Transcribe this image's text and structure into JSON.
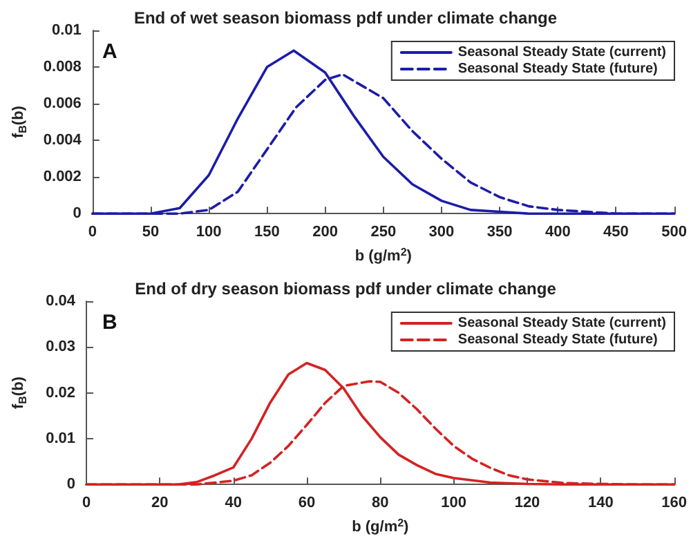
{
  "chart_data": [
    {
      "type": "line",
      "title": "End of wet season biomass pdf under climate change",
      "xlabel": "b (g/m$^{2}$)",
      "ylabel": "f$_{B}$(b)",
      "annotations": [
        "A"
      ],
      "xlim": [
        0,
        500
      ],
      "xticks": [
        0,
        50,
        100,
        150,
        200,
        250,
        300,
        350,
        400,
        450,
        500
      ],
      "ylim": [
        0,
        0.01
      ],
      "yticks": [
        0,
        0.002,
        0.004,
        0.006,
        0.008,
        0.01
      ],
      "grid": false,
      "legend": "top right",
      "marker": "none",
      "series": [
        {
          "name": "Seasonal Steady State (current)",
          "color": "#1c1ca8",
          "line_style": "solid",
          "x": [
            0,
            25,
            50,
            75,
            100,
            125,
            150,
            173,
            200,
            225,
            250,
            275,
            300,
            325,
            350,
            375,
            400,
            450,
            500
          ],
          "values": [
            0,
            0,
            0,
            0.0003,
            0.0021,
            0.0052,
            0.008,
            0.0089,
            0.0077,
            0.0053,
            0.0031,
            0.0016,
            0.0007,
            0.0002,
            0.0001,
            0,
            0,
            0,
            0
          ]
        },
        {
          "name": "Seasonal Steady State (future)",
          "color": "#1c1ca8",
          "line_style": "dashed",
          "x": [
            0,
            50,
            75,
            100,
            125,
            150,
            175,
            200,
            215,
            250,
            275,
            300,
            325,
            350,
            375,
            400,
            425,
            450,
            500
          ],
          "values": [
            0,
            0,
            0,
            0.0002,
            0.0012,
            0.0035,
            0.0058,
            0.0073,
            0.0076,
            0.0063,
            0.0045,
            0.003,
            0.0017,
            0.0009,
            0.0004,
            0.0002,
            0.0001,
            0,
            0
          ]
        }
      ]
    },
    {
      "type": "line",
      "title": "End of dry season biomass pdf under climate change",
      "xlabel": "b (g/m$^{2}$)",
      "ylabel": "f$_{B}$(b)",
      "annotations": [
        "B"
      ],
      "xlim": [
        0,
        160
      ],
      "xticks": [
        0,
        20,
        40,
        60,
        80,
        100,
        120,
        140,
        160
      ],
      "ylim": [
        0,
        0.04
      ],
      "yticks": [
        0,
        0.01,
        0.02,
        0.03,
        0.04
      ],
      "grid": false,
      "legend": "top right",
      "marker": "none",
      "series": [
        {
          "name": "Seasonal Steady State (current)",
          "color": "#d42222",
          "line_style": "solid",
          "x": [
            0,
            20,
            25,
            30,
            35,
            40,
            45,
            50,
            55,
            60,
            65,
            70,
            75,
            80,
            85,
            90,
            95,
            100,
            110,
            120,
            130,
            160
          ],
          "values": [
            0,
            0,
            0,
            0.0005,
            0.002,
            0.0037,
            0.01,
            0.0178,
            0.024,
            0.0265,
            0.025,
            0.021,
            0.015,
            0.0103,
            0.0065,
            0.0042,
            0.0023,
            0.0014,
            0.0004,
            0.0001,
            0,
            0
          ]
        },
        {
          "name": "Seasonal Steady State (future)",
          "color": "#d42222",
          "line_style": "dashed",
          "x": [
            0,
            30,
            40,
            45,
            50,
            55,
            60,
            65,
            70,
            77,
            80,
            85,
            90,
            95,
            100,
            105,
            110,
            115,
            120,
            130,
            140,
            150,
            160
          ],
          "values": [
            0,
            0,
            0.0008,
            0.002,
            0.0047,
            0.0084,
            0.013,
            0.0178,
            0.0215,
            0.0225,
            0.0224,
            0.02,
            0.0164,
            0.0122,
            0.0084,
            0.0056,
            0.0036,
            0.002,
            0.0011,
            0.0003,
            0.0001,
            0,
            0
          ]
        }
      ]
    }
  ]
}
